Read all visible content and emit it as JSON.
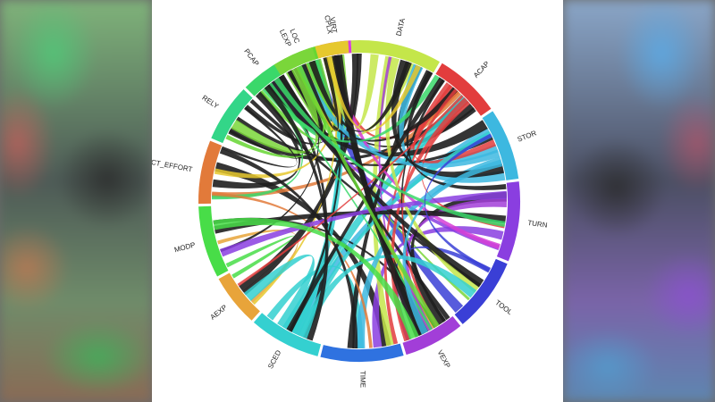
{
  "groups": [
    {
      "name": "DATA",
      "color": "#c4e64a"
    },
    {
      "name": "ACAP",
      "color": "#e23d3d"
    },
    {
      "name": "STOR",
      "color": "#3db8e0"
    },
    {
      "name": "TURN",
      "color": "#8a3ee0"
    },
    {
      "name": "TOOL",
      "color": "#3a3fd6"
    },
    {
      "name": "VEXP",
      "color": "#a23ed8"
    },
    {
      "name": "TIME",
      "color": "#2f72e0"
    },
    {
      "name": "SCED",
      "color": "#34d0d0"
    },
    {
      "name": "AEXP",
      "color": "#e8a43a"
    },
    {
      "name": "MODP",
      "color": "#48dd48"
    },
    {
      "name": "ACT_EFFORT",
      "color": "#e27a3a"
    },
    {
      "name": "RELY",
      "color": "#33d688"
    },
    {
      "name": "PCAP",
      "color": "#3ad86a"
    },
    {
      "name": "LOC",
      "color": "#66d633"
    },
    {
      "name": "VIRT",
      "color": "#d63ed6"
    },
    {
      "name": "LEXP",
      "color": "#7ad63a"
    },
    {
      "name": "CPLX",
      "color": "#e6c82e"
    }
  ],
  "colors": {
    "background_panel": "#ffffff",
    "dark_ribbon": "#1f1f1f"
  }
}
